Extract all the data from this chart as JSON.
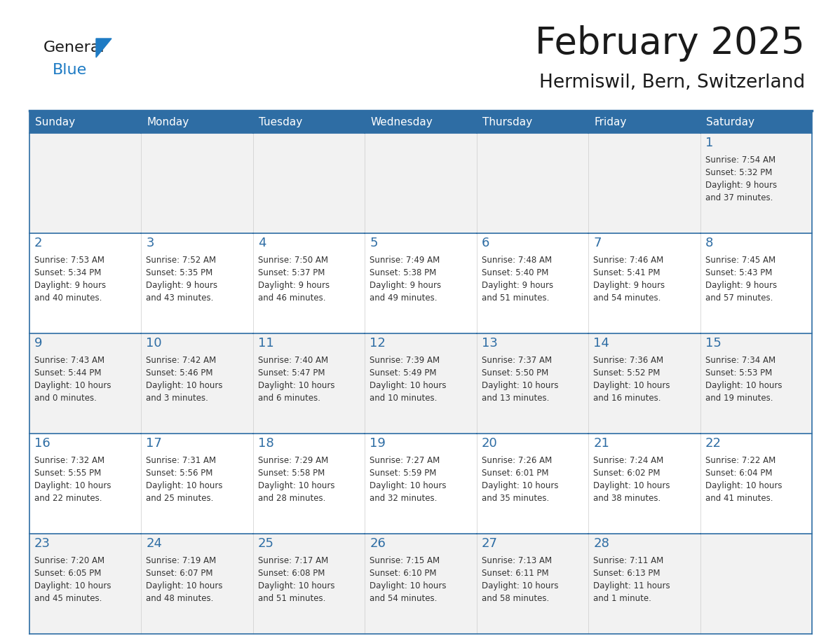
{
  "title": "February 2025",
  "subtitle": "Hermiswil, Bern, Switzerland",
  "header_bg": "#2E6DA4",
  "header_text": "#FFFFFF",
  "cell_bg_light": "#F2F2F2",
  "cell_bg_white": "#FFFFFF",
  "cell_border": "#2E6DA4",
  "cell_border_light": "#AAAAAA",
  "day_headers": [
    "Sunday",
    "Monday",
    "Tuesday",
    "Wednesday",
    "Thursday",
    "Friday",
    "Saturday"
  ],
  "title_color": "#1a1a1a",
  "subtitle_color": "#1a1a1a",
  "day_number_color": "#2E6DA4",
  "info_color": "#333333",
  "logo_general_color": "#1a1a1a",
  "logo_blue_color": "#1E7BC4",
  "weeks": [
    [
      {
        "day": "",
        "info": ""
      },
      {
        "day": "",
        "info": ""
      },
      {
        "day": "",
        "info": ""
      },
      {
        "day": "",
        "info": ""
      },
      {
        "day": "",
        "info": ""
      },
      {
        "day": "",
        "info": ""
      },
      {
        "day": "1",
        "info": "Sunrise: 7:54 AM\nSunset: 5:32 PM\nDaylight: 9 hours\nand 37 minutes."
      }
    ],
    [
      {
        "day": "2",
        "info": "Sunrise: 7:53 AM\nSunset: 5:34 PM\nDaylight: 9 hours\nand 40 minutes."
      },
      {
        "day": "3",
        "info": "Sunrise: 7:52 AM\nSunset: 5:35 PM\nDaylight: 9 hours\nand 43 minutes."
      },
      {
        "day": "4",
        "info": "Sunrise: 7:50 AM\nSunset: 5:37 PM\nDaylight: 9 hours\nand 46 minutes."
      },
      {
        "day": "5",
        "info": "Sunrise: 7:49 AM\nSunset: 5:38 PM\nDaylight: 9 hours\nand 49 minutes."
      },
      {
        "day": "6",
        "info": "Sunrise: 7:48 AM\nSunset: 5:40 PM\nDaylight: 9 hours\nand 51 minutes."
      },
      {
        "day": "7",
        "info": "Sunrise: 7:46 AM\nSunset: 5:41 PM\nDaylight: 9 hours\nand 54 minutes."
      },
      {
        "day": "8",
        "info": "Sunrise: 7:45 AM\nSunset: 5:43 PM\nDaylight: 9 hours\nand 57 minutes."
      }
    ],
    [
      {
        "day": "9",
        "info": "Sunrise: 7:43 AM\nSunset: 5:44 PM\nDaylight: 10 hours\nand 0 minutes."
      },
      {
        "day": "10",
        "info": "Sunrise: 7:42 AM\nSunset: 5:46 PM\nDaylight: 10 hours\nand 3 minutes."
      },
      {
        "day": "11",
        "info": "Sunrise: 7:40 AM\nSunset: 5:47 PM\nDaylight: 10 hours\nand 6 minutes."
      },
      {
        "day": "12",
        "info": "Sunrise: 7:39 AM\nSunset: 5:49 PM\nDaylight: 10 hours\nand 10 minutes."
      },
      {
        "day": "13",
        "info": "Sunrise: 7:37 AM\nSunset: 5:50 PM\nDaylight: 10 hours\nand 13 minutes."
      },
      {
        "day": "14",
        "info": "Sunrise: 7:36 AM\nSunset: 5:52 PM\nDaylight: 10 hours\nand 16 minutes."
      },
      {
        "day": "15",
        "info": "Sunrise: 7:34 AM\nSunset: 5:53 PM\nDaylight: 10 hours\nand 19 minutes."
      }
    ],
    [
      {
        "day": "16",
        "info": "Sunrise: 7:32 AM\nSunset: 5:55 PM\nDaylight: 10 hours\nand 22 minutes."
      },
      {
        "day": "17",
        "info": "Sunrise: 7:31 AM\nSunset: 5:56 PM\nDaylight: 10 hours\nand 25 minutes."
      },
      {
        "day": "18",
        "info": "Sunrise: 7:29 AM\nSunset: 5:58 PM\nDaylight: 10 hours\nand 28 minutes."
      },
      {
        "day": "19",
        "info": "Sunrise: 7:27 AM\nSunset: 5:59 PM\nDaylight: 10 hours\nand 32 minutes."
      },
      {
        "day": "20",
        "info": "Sunrise: 7:26 AM\nSunset: 6:01 PM\nDaylight: 10 hours\nand 35 minutes."
      },
      {
        "day": "21",
        "info": "Sunrise: 7:24 AM\nSunset: 6:02 PM\nDaylight: 10 hours\nand 38 minutes."
      },
      {
        "day": "22",
        "info": "Sunrise: 7:22 AM\nSunset: 6:04 PM\nDaylight: 10 hours\nand 41 minutes."
      }
    ],
    [
      {
        "day": "23",
        "info": "Sunrise: 7:20 AM\nSunset: 6:05 PM\nDaylight: 10 hours\nand 45 minutes."
      },
      {
        "day": "24",
        "info": "Sunrise: 7:19 AM\nSunset: 6:07 PM\nDaylight: 10 hours\nand 48 minutes."
      },
      {
        "day": "25",
        "info": "Sunrise: 7:17 AM\nSunset: 6:08 PM\nDaylight: 10 hours\nand 51 minutes."
      },
      {
        "day": "26",
        "info": "Sunrise: 7:15 AM\nSunset: 6:10 PM\nDaylight: 10 hours\nand 54 minutes."
      },
      {
        "day": "27",
        "info": "Sunrise: 7:13 AM\nSunset: 6:11 PM\nDaylight: 10 hours\nand 58 minutes."
      },
      {
        "day": "28",
        "info": "Sunrise: 7:11 AM\nSunset: 6:13 PM\nDaylight: 11 hours\nand 1 minute."
      },
      {
        "day": "",
        "info": ""
      }
    ]
  ]
}
